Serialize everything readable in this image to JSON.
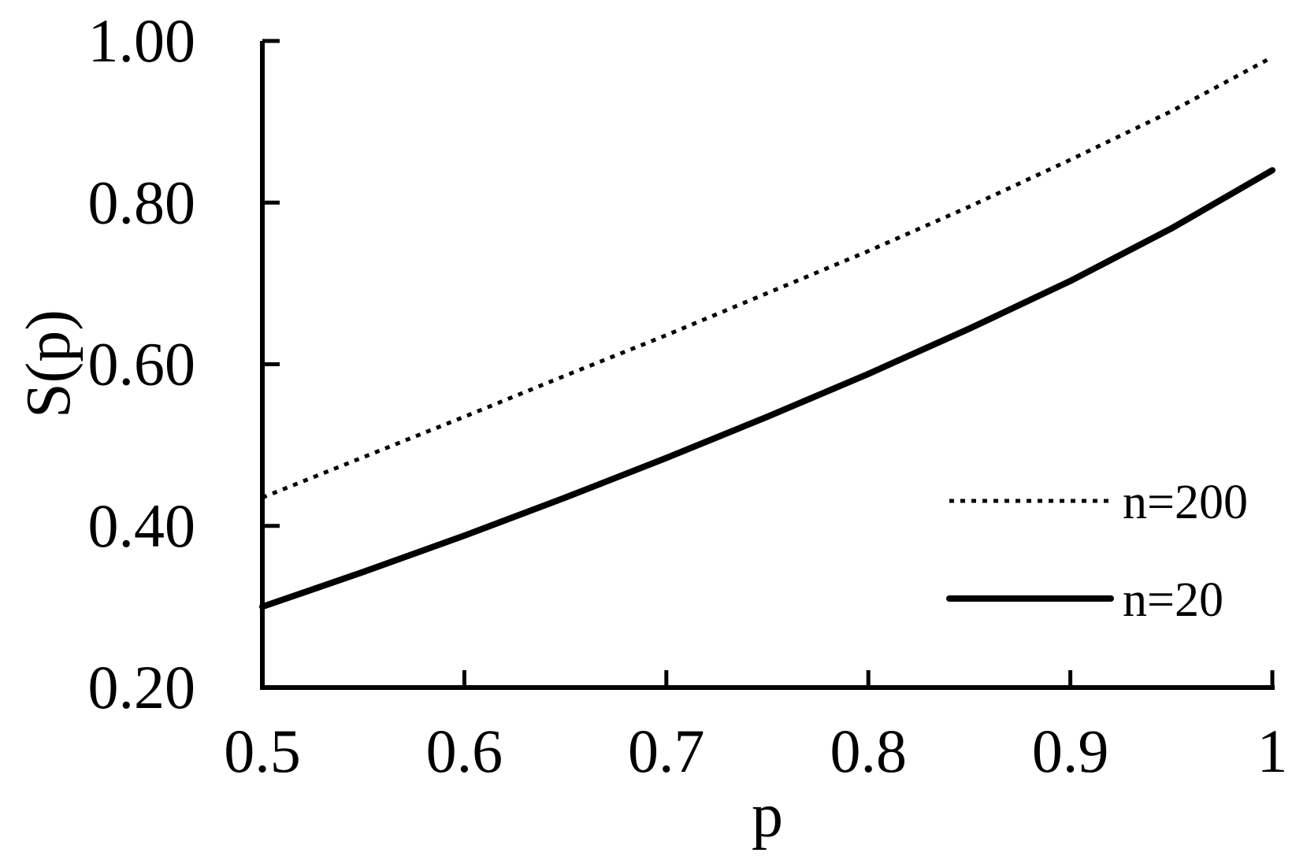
{
  "chart_data": {
    "type": "line",
    "xlabel": "p",
    "ylabel": "S(p)",
    "xlim": [
      0.5,
      1.0
    ],
    "ylim": [
      0.2,
      1.0
    ],
    "x_ticks": [
      0.5,
      0.6,
      0.7,
      0.8,
      0.9,
      1.0
    ],
    "x_tick_labels": [
      "0.5",
      "0.6",
      "0.7",
      "0.8",
      "0.9",
      "1"
    ],
    "y_ticks": [
      0.2,
      0.4,
      0.6,
      0.8,
      1.0
    ],
    "y_tick_labels": [
      "0.20",
      "0.40",
      "0.60",
      "0.80",
      "1.00"
    ],
    "grid": false,
    "legend_position": "bottom-right",
    "colors": {
      "line": "#000000",
      "background": "#ffffff"
    },
    "x": [
      0.5,
      0.55,
      0.6,
      0.65,
      0.7,
      0.75,
      0.8,
      0.85,
      0.9,
      0.95,
      1.0
    ],
    "series": [
      {
        "name": "n=200",
        "style": "dotted",
        "values": [
          0.435,
          0.485,
          0.535,
          0.586,
          0.636,
          0.688,
          0.74,
          0.795,
          0.853,
          0.913,
          0.98
        ]
      },
      {
        "name": "n=20",
        "style": "solid",
        "values": [
          0.3,
          0.343,
          0.388,
          0.435,
          0.484,
          0.535,
          0.588,
          0.644,
          0.703,
          0.768,
          0.84
        ]
      }
    ]
  }
}
